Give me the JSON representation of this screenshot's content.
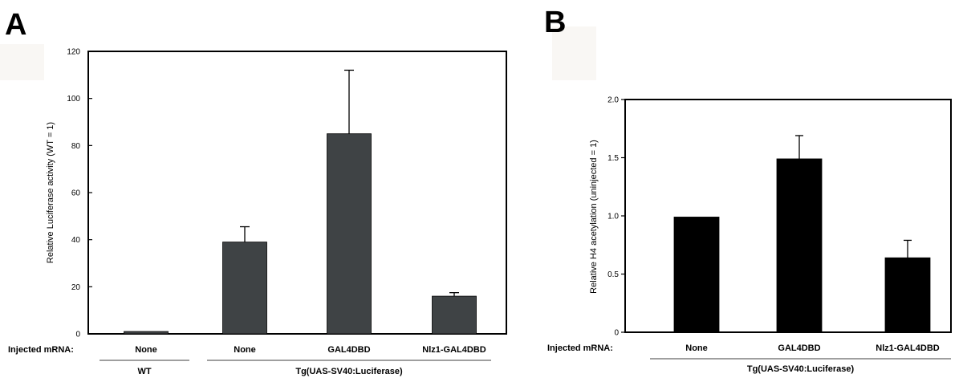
{
  "panels": [
    {
      "label": "A"
    },
    {
      "label": "B"
    }
  ],
  "injected_label": "Injected mRNA:",
  "chart_data": [
    {
      "type": "bar",
      "panel": "A",
      "categories": [
        "None",
        "None",
        "GAL4DBD",
        "Nlz1-GAL4DBD"
      ],
      "values": [
        1,
        39,
        85,
        16
      ],
      "errors": [
        0,
        6.5,
        27,
        1.5
      ],
      "ylabel": "Relative Luciferase activity (WT = 1)",
      "xlabel": "",
      "ylim": [
        0,
        120
      ],
      "yticks": [
        "0",
        "20",
        "40",
        "60",
        "80",
        "100",
        "120"
      ],
      "bar_color": "#3f4345",
      "groups": [
        {
          "label": "WT",
          "span": [
            0,
            0
          ]
        },
        {
          "label": "Tg(UAS-SV40:Luciferase)",
          "span": [
            1,
            3
          ]
        }
      ]
    },
    {
      "type": "bar",
      "panel": "B",
      "categories": [
        "None",
        "GAL4DBD",
        "Nlz1-GAL4DBD"
      ],
      "values": [
        0.99,
        1.49,
        0.64
      ],
      "errors": [
        0,
        0.2,
        0.15
      ],
      "ylabel": "Relative H4 acetylation (uninjected = 1)",
      "xlabel": "",
      "ylim": [
        0,
        2.0
      ],
      "yticks": [
        "0",
        "0.5",
        "1.0",
        "1.5",
        "2.0"
      ],
      "bar_color": "#000000",
      "groups": [
        {
          "label": "Tg(UAS-SV40:Luciferase)",
          "span": [
            0,
            2
          ]
        }
      ]
    }
  ]
}
